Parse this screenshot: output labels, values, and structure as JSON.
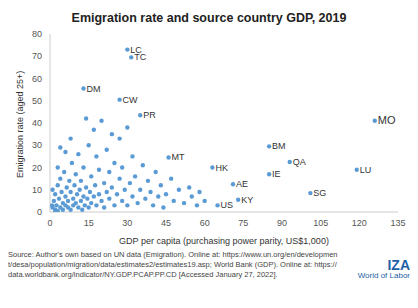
{
  "chart_data": {
    "type": "scatter",
    "title": "Emigration rate and source country GDP, 2019",
    "x_label": "GDP per capita (purchasing power parity, US$1,000)",
    "y_label": "Emigration rate (aged 25+)",
    "color": "#5b9bd5",
    "grid": false,
    "xlim": [
      0,
      135
    ],
    "xticks": [
      0,
      15,
      30,
      45,
      60,
      75,
      90,
      105,
      120,
      135
    ],
    "ylim": [
      0,
      80
    ],
    "yticks": [
      0,
      10,
      20,
      30,
      40,
      50,
      60,
      70,
      80
    ],
    "x": [
      30,
      31.5,
      13,
      27,
      35,
      46,
      63,
      71,
      65,
      73,
      85,
      85,
      93,
      101,
      119,
      126,
      1,
      1.5,
      2,
      2,
      2.5,
      3,
      3,
      3.5,
      4,
      4,
      4.5,
      5,
      5,
      5.5,
      6,
      6,
      6.5,
      7,
      7,
      7.5,
      8,
      8,
      8.5,
      9,
      9,
      9.5,
      10,
      10,
      10.5,
      11,
      11,
      11.5,
      12,
      12,
      12.5,
      13,
      13,
      13.5,
      14,
      14,
      14.5,
      15,
      15,
      15.5,
      16,
      16,
      17,
      17,
      17.5,
      18,
      18,
      19,
      19,
      20,
      20,
      21,
      21,
      22,
      22,
      23,
      23,
      24,
      24,
      25,
      25,
      26,
      27,
      27,
      28,
      28,
      29,
      30,
      30,
      31,
      32,
      32,
      33,
      34,
      35,
      36,
      37,
      38,
      39,
      40,
      41,
      42,
      43,
      44,
      45,
      47,
      48,
      50,
      52,
      54,
      55,
      57,
      58,
      60,
      3,
      6,
      8,
      2,
      1,
      0.8,
      4
    ],
    "values": [
      73,
      69.5,
      55.5,
      50.5,
      43.5,
      24.5,
      20,
      12.5,
      3,
      5.5,
      17,
      29.5,
      22.5,
      8.5,
      19,
      41,
      2,
      5,
      1,
      8,
      3,
      12,
      0.5,
      6,
      2,
      15,
      9,
      4,
      1,
      18,
      7,
      3,
      11,
      2,
      5,
      14,
      9,
      1,
      22,
      6,
      3,
      12,
      4,
      17,
      8,
      2,
      26,
      10,
      5,
      14,
      1,
      7,
      20,
      3,
      11,
      42,
      6,
      30,
      2,
      9,
      16,
      4,
      37,
      7,
      12,
      3,
      25,
      8,
      19,
      41,
      5,
      13,
      2,
      28,
      9,
      6,
      18,
      35,
      11,
      3,
      22,
      8,
      15,
      33,
      5,
      20,
      10,
      38,
      3,
      13,
      7,
      25,
      16,
      4,
      10,
      21,
      6,
      14,
      9,
      3,
      18,
      7,
      12,
      2,
      8,
      15,
      5,
      10,
      4,
      11,
      7,
      3,
      9,
      5,
      20,
      27,
      33,
      0,
      10,
      3,
      29
    ],
    "point_labels": [
      "LC",
      "TC",
      "DM",
      "CW",
      "PR",
      "MT",
      "HK",
      "AE",
      "US",
      "KY",
      "IE",
      "BM",
      "QA",
      "SG",
      "LU",
      "MO",
      null,
      null,
      null,
      null,
      null,
      null,
      null,
      null,
      null,
      null,
      null,
      null,
      null,
      null,
      null,
      null,
      null,
      null,
      null,
      null,
      null,
      null,
      null,
      null,
      null,
      null,
      null,
      null,
      null,
      null,
      null,
      null,
      null,
      null,
      null,
      null,
      null,
      null,
      null,
      null,
      null,
      null,
      null,
      null,
      null,
      null,
      null,
      null,
      null,
      null,
      null,
      null,
      null,
      null,
      null,
      null,
      null,
      null,
      null,
      null,
      null,
      null,
      null,
      null,
      null,
      null,
      null,
      null,
      null,
      null,
      null,
      null,
      null,
      null,
      null,
      null,
      null,
      null,
      null,
      null,
      null,
      null,
      null,
      null,
      null,
      null,
      null,
      null,
      null,
      null,
      null,
      null,
      null,
      null,
      null,
      null,
      null,
      null,
      null,
      null,
      null,
      null,
      null,
      null,
      null
    ]
  },
  "source": "Source: Author's own based on UN data (Emigration). Online at: https://www.un.org/en/development/desa/population/migration/data/estimates2/estimates19.asp; World Bank (GDP). Online at: https://data.worldbank.org/indicator/NY.GDP.PCAP.PP.CD [Accessed January 27, 2022].",
  "logo": {
    "name": "IZA",
    "tagline": "World of Labor"
  }
}
